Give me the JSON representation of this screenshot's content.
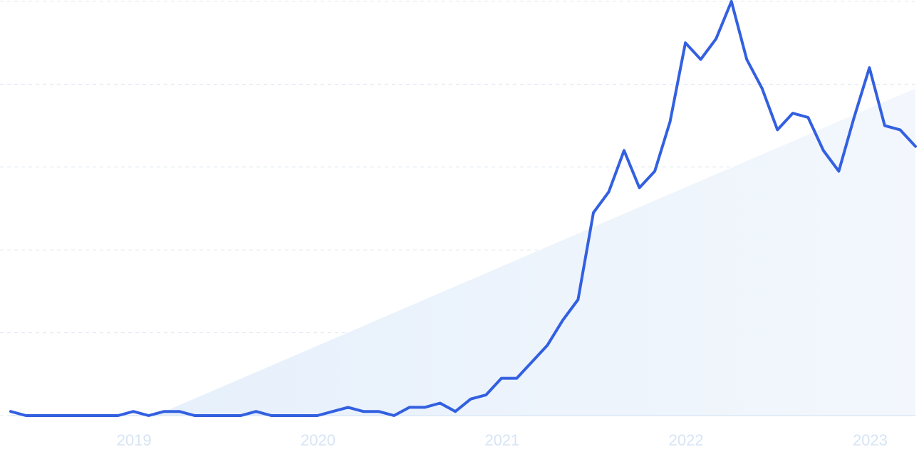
{
  "chart_data": {
    "type": "line",
    "title": "",
    "xlabel": "",
    "ylabel": "",
    "x_tick_labels": [
      "2019",
      "2020",
      "2021",
      "2022",
      "2023"
    ],
    "x_ticks": [
      "2019-01",
      "2020-01",
      "2021-01",
      "2022-01",
      "2023-01"
    ],
    "ylim": [
      0,
      100
    ],
    "grid": "horizontal dashed",
    "legend": "none",
    "trend_area": true,
    "colors": {
      "line": "#3360e0",
      "trend_fill": "#e6f0fb",
      "grid": "#dfe8f0",
      "axis_text": "#d6e4f5"
    },
    "x": [
      "2018-05",
      "2018-06",
      "2018-07",
      "2018-08",
      "2018-09",
      "2018-10",
      "2018-11",
      "2018-12",
      "2019-01",
      "2019-02",
      "2019-03",
      "2019-04",
      "2019-05",
      "2019-06",
      "2019-07",
      "2019-08",
      "2019-09",
      "2019-10",
      "2019-11",
      "2019-12",
      "2020-01",
      "2020-02",
      "2020-03",
      "2020-04",
      "2020-05",
      "2020-06",
      "2020-07",
      "2020-08",
      "2020-09",
      "2020-10",
      "2020-11",
      "2020-12",
      "2021-01",
      "2021-02",
      "2021-03",
      "2021-04",
      "2021-05",
      "2021-06",
      "2021-07",
      "2021-08",
      "2021-09",
      "2021-10",
      "2021-11",
      "2021-12",
      "2022-01",
      "2022-02",
      "2022-03",
      "2022-04",
      "2022-05",
      "2022-06",
      "2022-07",
      "2022-08",
      "2022-09",
      "2022-10",
      "2022-11",
      "2022-12",
      "2023-01",
      "2023-02",
      "2023-03",
      "2023-04"
    ],
    "values": [
      1,
      0,
      0,
      0,
      0,
      0,
      0,
      0,
      1,
      0,
      1,
      1,
      0,
      0,
      0,
      0,
      1,
      0,
      0,
      0,
      0,
      1,
      2,
      1,
      1,
      0,
      2,
      2,
      3,
      1,
      4,
      5,
      9,
      9,
      13,
      17,
      23,
      28,
      49,
      54,
      64,
      55,
      59,
      71,
      90,
      86,
      91,
      100,
      86,
      79,
      69,
      73,
      72,
      64,
      59,
      72,
      84,
      70,
      69,
      65
    ],
    "trend": [
      -15,
      79
    ]
  }
}
